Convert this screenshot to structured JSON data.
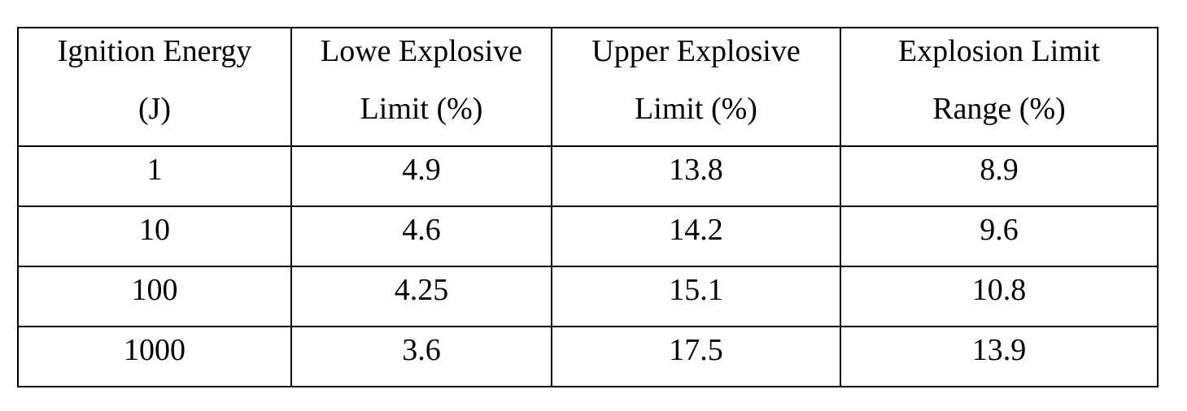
{
  "table": {
    "header": [
      [
        "Ignition Energy",
        "(J)"
      ],
      [
        "Lowe Explosive",
        "Limit (%)"
      ],
      [
        "Upper Explosive",
        "Limit (%)"
      ],
      [
        "Explosion Limit",
        "Range (%)"
      ]
    ],
    "rows": [
      [
        "1",
        "4.9",
        "13.8",
        "8.9"
      ],
      [
        "10",
        "4.6",
        "14.2",
        "9.6"
      ],
      [
        "100",
        "4.25",
        "15.1",
        "10.8"
      ],
      [
        "1000",
        "3.6",
        "17.5",
        "13.9"
      ]
    ]
  }
}
